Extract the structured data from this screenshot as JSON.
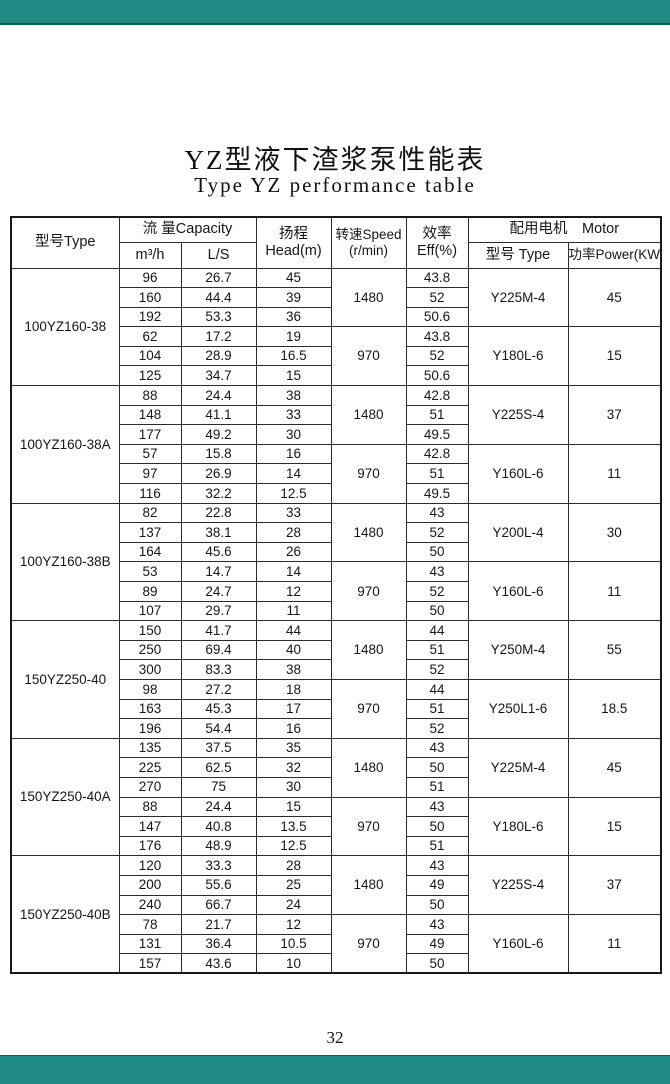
{
  "page": {
    "title_zh": "YZ型液下渣浆泵性能表",
    "title_en": "Type YZ performance table",
    "page_number": "32",
    "colors": {
      "accent_teal": "#1f8984",
      "accent_teal_dark": "#0b5a53",
      "table_border": "#2b2b2b"
    }
  },
  "table": {
    "header": {
      "model": "型号Type",
      "capacity": "流 量Capacity",
      "capacity_m3h": "m³/h",
      "capacity_ls": "L/S",
      "head_zh": "扬程",
      "head_en": "Head(m)",
      "speed_zh": "转速Speed",
      "speed_en": "(r/min)",
      "eff_zh": "效率",
      "eff_en": "Eff(%)",
      "motor": "配用电机　Motor",
      "motor_model": "型号 Type",
      "motor_power": "功率Power(KW)"
    },
    "sections": [
      {
        "model": "100YZ160-38",
        "groups": [
          {
            "speed": "1480",
            "motor": "Y225M-4",
            "power": "45",
            "rows": [
              [
                "96",
                "26.7",
                "45",
                "43.8"
              ],
              [
                "160",
                "44.4",
                "39",
                "52"
              ],
              [
                "192",
                "53.3",
                "36",
                "50.6"
              ]
            ]
          },
          {
            "speed": "970",
            "motor": "Y180L-6",
            "power": "15",
            "rows": [
              [
                "62",
                "17.2",
                "19",
                "43.8"
              ],
              [
                "104",
                "28.9",
                "16.5",
                "52"
              ],
              [
                "125",
                "34.7",
                "15",
                "50.6"
              ]
            ]
          }
        ]
      },
      {
        "model": "100YZ160-38A",
        "groups": [
          {
            "speed": "1480",
            "motor": "Y225S-4",
            "power": "37",
            "rows": [
              [
                "88",
                "24.4",
                "38",
                "42.8"
              ],
              [
                "148",
                "41.1",
                "33",
                "51"
              ],
              [
                "177",
                "49.2",
                "30",
                "49.5"
              ]
            ]
          },
          {
            "speed": "970",
            "motor": "Y160L-6",
            "power": "11",
            "rows": [
              [
                "57",
                "15.8",
                "16",
                "42.8"
              ],
              [
                "97",
                "26.9",
                "14",
                "51"
              ],
              [
                "116",
                "32.2",
                "12.5",
                "49.5"
              ]
            ]
          }
        ]
      },
      {
        "model": "100YZ160-38B",
        "groups": [
          {
            "speed": "1480",
            "motor": "Y200L-4",
            "power": "30",
            "rows": [
              [
                "82",
                "22.8",
                "33",
                "43"
              ],
              [
                "137",
                "38.1",
                "28",
                "52"
              ],
              [
                "164",
                "45.6",
                "26",
                "50"
              ]
            ]
          },
          {
            "speed": "970",
            "motor": "Y160L-6",
            "power": "11",
            "rows": [
              [
                "53",
                "14.7",
                "14",
                "43"
              ],
              [
                "89",
                "24.7",
                "12",
                "52"
              ],
              [
                "107",
                "29.7",
                "11",
                "50"
              ]
            ]
          }
        ]
      },
      {
        "model": "150YZ250-40",
        "groups": [
          {
            "speed": "1480",
            "motor": "Y250M-4",
            "power": "55",
            "rows": [
              [
                "150",
                "41.7",
                "44",
                "44"
              ],
              [
                "250",
                "69.4",
                "40",
                "51"
              ],
              [
                "300",
                "83.3",
                "38",
                "52"
              ]
            ]
          },
          {
            "speed": "970",
            "motor": "Y250L1-6",
            "power": "18.5",
            "rows": [
              [
                "98",
                "27.2",
                "18",
                "44"
              ],
              [
                "163",
                "45.3",
                "17",
                "51"
              ],
              [
                "196",
                "54.4",
                "16",
                "52"
              ]
            ]
          }
        ]
      },
      {
        "model": "150YZ250-40A",
        "groups": [
          {
            "speed": "1480",
            "motor": "Y225M-4",
            "power": "45",
            "rows": [
              [
                "135",
                "37.5",
                "35",
                "43"
              ],
              [
                "225",
                "62.5",
                "32",
                "50"
              ],
              [
                "270",
                "75",
                "30",
                "51"
              ]
            ]
          },
          {
            "speed": "970",
            "motor": "Y180L-6",
            "power": "15",
            "rows": [
              [
                "88",
                "24.4",
                "15",
                "43"
              ],
              [
                "147",
                "40.8",
                "13.5",
                "50"
              ],
              [
                "176",
                "48.9",
                "12.5",
                "51"
              ]
            ]
          }
        ]
      },
      {
        "model": "150YZ250-40B",
        "groups": [
          {
            "speed": "1480",
            "motor": "Y225S-4",
            "power": "37",
            "rows": [
              [
                "120",
                "33.3",
                "28",
                "43"
              ],
              [
                "200",
                "55.6",
                "25",
                "49"
              ],
              [
                "240",
                "66.7",
                "24",
                "50"
              ]
            ]
          },
          {
            "speed": "970",
            "motor": "Y160L-6",
            "power": "11",
            "rows": [
              [
                "78",
                "21.7",
                "12",
                "43"
              ],
              [
                "131",
                "36.4",
                "10.5",
                "49"
              ],
              [
                "157",
                "43.6",
                "10",
                "50"
              ]
            ]
          }
        ]
      }
    ]
  }
}
